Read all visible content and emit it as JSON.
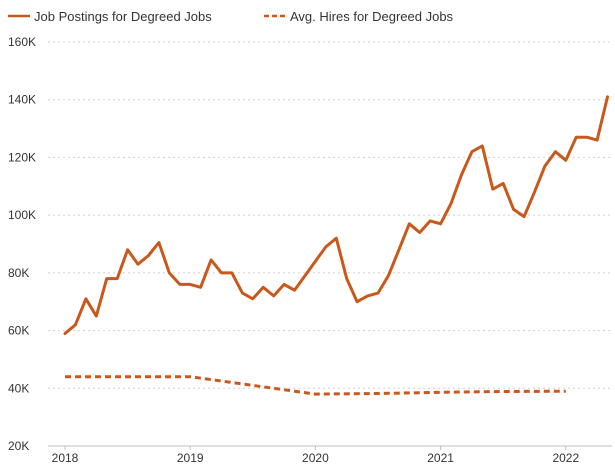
{
  "chart_data": {
    "type": "line",
    "title": "",
    "xlabel": "",
    "ylabel": "",
    "x_ticks": [
      "2018",
      "2019",
      "2020",
      "2021",
      "2022"
    ],
    "y_ticks": [
      "20K",
      "40K",
      "60K",
      "80K",
      "100K",
      "120K",
      "140K",
      "160K"
    ],
    "ylim": [
      20000,
      160000
    ],
    "xlim": [
      2018.0,
      2022.45
    ],
    "grid": "horizontal dotted",
    "legend_position": "top-left",
    "colors": {
      "line": "#c9581c",
      "grid": "#d0d0d0",
      "text": "#333333"
    },
    "series": [
      {
        "name": "Job Postings for Degreed Jobs",
        "style": "solid",
        "x": [
          2018.0,
          2018.083,
          2018.167,
          2018.25,
          2018.333,
          2018.417,
          2018.5,
          2018.583,
          2018.667,
          2018.75,
          2018.833,
          2018.917,
          2019.0,
          2019.083,
          2019.167,
          2019.25,
          2019.333,
          2019.417,
          2019.5,
          2019.583,
          2019.667,
          2019.75,
          2019.833,
          2019.917,
          2020.0,
          2020.083,
          2020.167,
          2020.25,
          2020.333,
          2020.417,
          2020.5,
          2020.583,
          2020.667,
          2020.75,
          2020.833,
          2020.917,
          2021.0,
          2021.083,
          2021.167,
          2021.25,
          2021.333,
          2021.417,
          2021.5,
          2021.583,
          2021.667,
          2021.75,
          2021.833,
          2021.917,
          2022.0,
          2022.083,
          2022.167,
          2022.25,
          2022.333
        ],
        "y": [
          59000,
          62000,
          71000,
          65000,
          78000,
          78000,
          88000,
          83000,
          86000,
          90500,
          80000,
          76000,
          76000,
          75000,
          84500,
          80000,
          80000,
          73000,
          71000,
          75000,
          72000,
          76000,
          74000,
          79000,
          84000,
          89000,
          92000,
          78000,
          70000,
          72000,
          73000,
          79000,
          88000,
          97000,
          94000,
          98000,
          97000,
          104000,
          114000,
          122000,
          124000,
          109000,
          111000,
          102000,
          99500,
          108000,
          117000,
          122000,
          119000,
          127000,
          127000,
          126000,
          141000
        ]
      },
      {
        "name": "Avg. Hires for Degreed Jobs",
        "style": "dashed",
        "x": [
          2018.0,
          2019.0,
          2019.5,
          2020.0,
          2020.5,
          2021.0,
          2021.5,
          2022.0
        ],
        "y": [
          44000,
          44000,
          41000,
          38000,
          38200,
          38600,
          38900,
          39000
        ]
      }
    ]
  }
}
